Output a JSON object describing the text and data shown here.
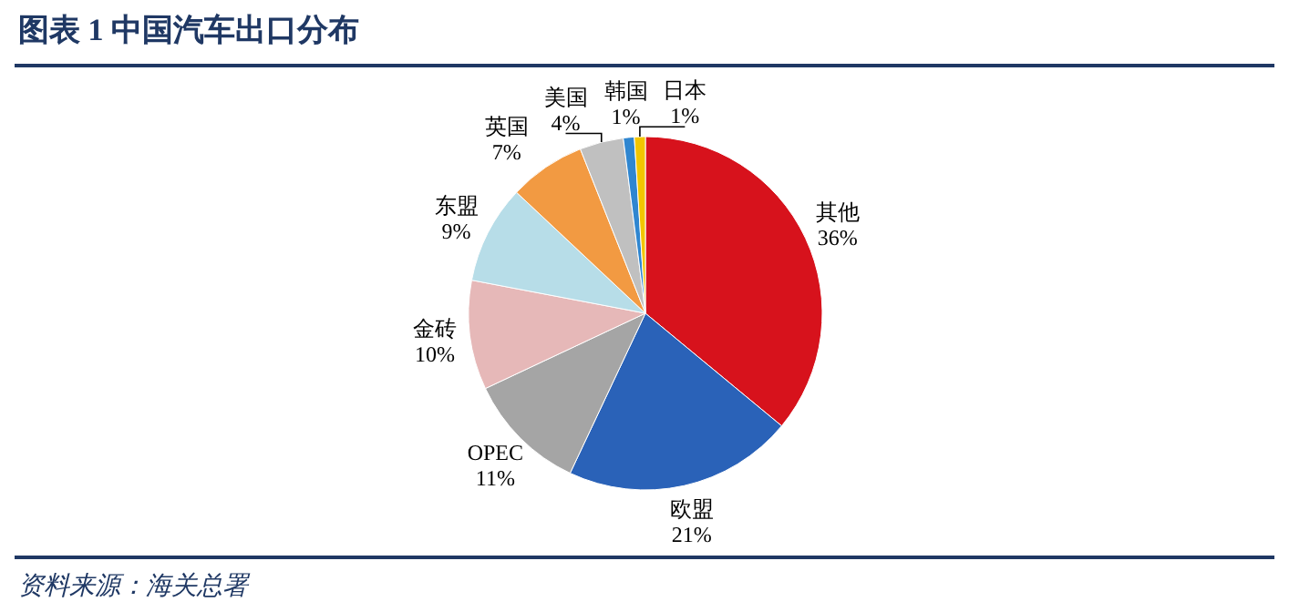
{
  "chart_data": {
    "type": "pie",
    "title": "图表 1   中国汽车出口分布",
    "categories": [
      "其他",
      "欧盟",
      "OPEC",
      "金砖",
      "东盟",
      "英国",
      "美国",
      "韩国",
      "日本"
    ],
    "values": [
      36,
      21,
      11,
      10,
      9,
      7,
      4,
      1,
      1
    ],
    "value_labels": [
      "36%",
      "21%",
      "11%",
      "10%",
      "9%",
      "7%",
      "4%",
      "1%",
      "1%"
    ],
    "colors": [
      "#d7121c",
      "#2a62b8",
      "#a5a5a5",
      "#e6b8b8",
      "#b7dde8",
      "#f29a42",
      "#c0c0c0",
      "#2f86d0",
      "#f2c500"
    ],
    "annotations": [
      "资料来源：海关总署"
    ]
  }
}
